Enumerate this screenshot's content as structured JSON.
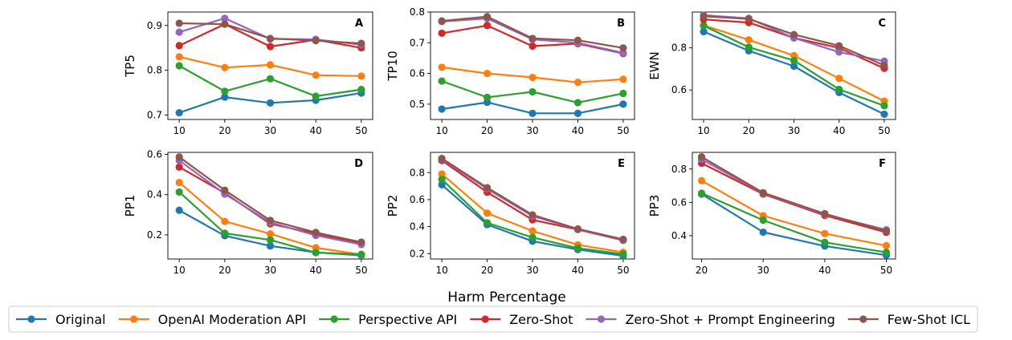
{
  "figure": {
    "xlabel": "Harm Percentage",
    "legend_position": "bottom-center"
  },
  "series": [
    {
      "name": "Original",
      "color": "#1f77b4"
    },
    {
      "name": "OpenAI Moderation API",
      "color": "#ff7f0e"
    },
    {
      "name": "Perspective API",
      "color": "#2ca02c"
    },
    {
      "name": "Zero-Shot",
      "color": "#d62728"
    },
    {
      "name": "Zero-Shot + Prompt Engineering",
      "color": "#9467bd"
    },
    {
      "name": "Few-Shot ICL",
      "color": "#8c564b"
    }
  ],
  "chart_data": [
    {
      "type": "line",
      "panel": "A",
      "ylabel": "TP5",
      "x": [
        10,
        20,
        30,
        40,
        50
      ],
      "xlim": [
        7.5,
        52.5
      ],
      "ylim": [
        0.69,
        0.93
      ],
      "yticks": [
        0.7,
        0.8,
        0.9
      ],
      "yticklabels": [
        "0.7",
        "0.8",
        "0.9"
      ],
      "series": [
        {
          "name": "Original",
          "values": [
            0.705,
            0.74,
            0.727,
            0.733,
            0.749
          ]
        },
        {
          "name": "OpenAI Moderation API",
          "values": [
            0.83,
            0.806,
            0.812,
            0.789,
            0.787
          ]
        },
        {
          "name": "Perspective API",
          "values": [
            0.81,
            0.753,
            0.781,
            0.742,
            0.757
          ]
        },
        {
          "name": "Zero-Shot",
          "values": [
            0.855,
            0.903,
            0.853,
            0.868,
            0.85
          ]
        },
        {
          "name": "Zero-Shot + Prompt Engineering",
          "values": [
            0.885,
            0.916,
            0.87,
            0.869,
            0.857
          ]
        },
        {
          "name": "Few-Shot ICL",
          "values": [
            0.905,
            0.903,
            0.871,
            0.866,
            0.86
          ]
        }
      ]
    },
    {
      "type": "line",
      "panel": "B",
      "ylabel": "TP10",
      "x": [
        10,
        20,
        30,
        40,
        50
      ],
      "xlim": [
        7.5,
        52.5
      ],
      "ylim": [
        0.45,
        0.8
      ],
      "yticks": [
        0.5,
        0.6,
        0.7,
        0.8
      ],
      "yticklabels": [
        "0.5",
        "0.6",
        "0.7",
        "0.8"
      ],
      "series": [
        {
          "name": "Original",
          "values": [
            0.484,
            0.506,
            0.47,
            0.47,
            0.5
          ]
        },
        {
          "name": "OpenAI Moderation API",
          "values": [
            0.62,
            0.6,
            0.587,
            0.571,
            0.581
          ]
        },
        {
          "name": "Perspective API",
          "values": [
            0.575,
            0.522,
            0.54,
            0.505,
            0.535
          ]
        },
        {
          "name": "Zero-Shot",
          "values": [
            0.731,
            0.756,
            0.689,
            0.697,
            0.665
          ]
        },
        {
          "name": "Zero-Shot + Prompt Engineering",
          "values": [
            0.769,
            0.779,
            0.711,
            0.7,
            0.667
          ]
        },
        {
          "name": "Few-Shot ICL",
          "values": [
            0.771,
            0.785,
            0.714,
            0.708,
            0.683
          ]
        }
      ]
    },
    {
      "type": "line",
      "panel": "C",
      "ylabel": "EWN",
      "x": [
        10,
        20,
        30,
        40,
        50
      ],
      "xlim": [
        7.5,
        52.5
      ],
      "ylim": [
        0.46,
        0.97
      ],
      "yticks": [
        0.6,
        0.8
      ],
      "yticklabels": [
        "0.6",
        "0.8"
      ],
      "series": [
        {
          "name": "Original",
          "values": [
            0.877,
            0.786,
            0.713,
            0.588,
            0.485
          ]
        },
        {
          "name": "OpenAI Moderation API",
          "values": [
            0.907,
            0.838,
            0.763,
            0.655,
            0.547
          ]
        },
        {
          "name": "Perspective API",
          "values": [
            0.905,
            0.803,
            0.74,
            0.603,
            0.525
          ]
        },
        {
          "name": "Zero-Shot",
          "values": [
            0.935,
            0.92,
            0.847,
            0.8,
            0.703
          ]
        },
        {
          "name": "Zero-Shot + Prompt Engineering",
          "values": [
            0.955,
            0.94,
            0.847,
            0.78,
            0.737
          ]
        },
        {
          "name": "Few-Shot ICL",
          "values": [
            0.95,
            0.937,
            0.863,
            0.81,
            0.717
          ]
        }
      ]
    },
    {
      "type": "line",
      "panel": "D",
      "ylabel": "PP1",
      "x": [
        10,
        20,
        30,
        40,
        50
      ],
      "xlim": [
        7.5,
        52.5
      ],
      "ylim": [
        0.08,
        0.61
      ],
      "yticks": [
        0.2,
        0.4,
        0.6
      ],
      "yticklabels": [
        "0.2",
        "0.4",
        "0.6"
      ],
      "series": [
        {
          "name": "Original",
          "values": [
            0.322,
            0.196,
            0.145,
            0.113,
            0.098
          ]
        },
        {
          "name": "OpenAI Moderation API",
          "values": [
            0.46,
            0.267,
            0.205,
            0.136,
            0.102
          ]
        },
        {
          "name": "Perspective API",
          "values": [
            0.413,
            0.208,
            0.175,
            0.112,
            0.103
          ]
        },
        {
          "name": "Zero-Shot",
          "values": [
            0.537,
            0.408,
            0.255,
            0.206,
            0.157
          ]
        },
        {
          "name": "Zero-Shot + Prompt Engineering",
          "values": [
            0.57,
            0.403,
            0.262,
            0.197,
            0.152
          ]
        },
        {
          "name": "Few-Shot ICL",
          "values": [
            0.587,
            0.422,
            0.272,
            0.212,
            0.164
          ]
        }
      ]
    },
    {
      "type": "line",
      "panel": "E",
      "ylabel": "PP2",
      "x": [
        10,
        20,
        30,
        40,
        50
      ],
      "xlim": [
        7.5,
        52.5
      ],
      "ylim": [
        0.16,
        0.95
      ],
      "yticks": [
        0.2,
        0.4,
        0.6,
        0.8
      ],
      "yticklabels": [
        "0.2",
        "0.4",
        "0.6",
        "0.8"
      ],
      "series": [
        {
          "name": "Original",
          "values": [
            0.71,
            0.415,
            0.292,
            0.23,
            0.184
          ]
        },
        {
          "name": "OpenAI Moderation API",
          "values": [
            0.79,
            0.5,
            0.368,
            0.265,
            0.21
          ]
        },
        {
          "name": "Perspective API",
          "values": [
            0.75,
            0.428,
            0.32,
            0.24,
            0.196
          ]
        },
        {
          "name": "Zero-Shot",
          "values": [
            0.89,
            0.655,
            0.45,
            0.378,
            0.298
          ]
        },
        {
          "name": "Zero-Shot + Prompt Engineering",
          "values": [
            0.9,
            0.68,
            0.478,
            0.38,
            0.3
          ]
        },
        {
          "name": "Few-Shot ICL",
          "values": [
            0.905,
            0.688,
            0.487,
            0.383,
            0.306
          ]
        }
      ]
    },
    {
      "type": "line",
      "panel": "F",
      "ylabel": "PP3",
      "x": [
        20,
        30,
        40,
        50
      ],
      "xlim": [
        18.5,
        51.5
      ],
      "ylim": [
        0.26,
        0.9
      ],
      "yticks": [
        0.4,
        0.6,
        0.8
      ],
      "yticklabels": [
        "0.4",
        "0.6",
        "0.8"
      ],
      "series": [
        {
          "name": "Original",
          "values": [
            0.65,
            0.421,
            0.338,
            0.283
          ]
        },
        {
          "name": "OpenAI Moderation API",
          "values": [
            0.73,
            0.52,
            0.413,
            0.34
          ]
        },
        {
          "name": "Perspective API",
          "values": [
            0.655,
            0.493,
            0.36,
            0.3
          ]
        },
        {
          "name": "Zero-Shot",
          "values": [
            0.835,
            0.65,
            0.522,
            0.42
          ]
        },
        {
          "name": "Zero-Shot + Prompt Engineering",
          "values": [
            0.858,
            0.655,
            0.528,
            0.435
          ]
        },
        {
          "name": "Few-Shot ICL",
          "values": [
            0.873,
            0.658,
            0.532,
            0.428
          ]
        }
      ]
    }
  ]
}
